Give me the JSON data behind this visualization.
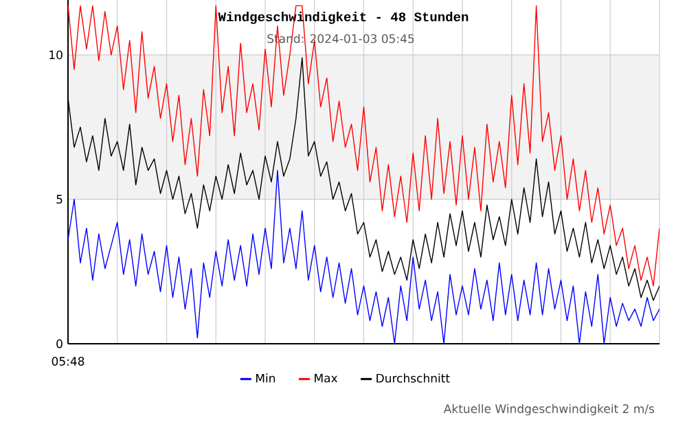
{
  "chart_data": {
    "type": "line",
    "title": "Windgeschwindigkeit - 48 Stunden",
    "subtitle": "Stand: 2024-01-03 05:45",
    "annotations": [
      "05:48",
      "Aktuelle Windgeschwindigkeit 2 m/s"
    ],
    "categories": [
      null,
      null,
      null,
      null,
      null,
      null,
      null,
      null,
      null,
      null,
      null,
      null,
      null,
      null,
      null,
      null,
      null,
      null,
      null,
      null,
      null,
      null,
      null,
      null,
      null,
      null,
      null,
      null,
      null,
      null,
      null,
      null,
      null,
      null,
      null,
      null,
      null,
      null,
      null,
      null,
      null,
      null,
      null,
      null,
      null,
      null,
      null,
      null,
      null,
      null,
      null,
      null,
      null,
      null,
      null,
      null,
      null,
      null,
      null,
      null,
      null,
      null,
      null,
      null,
      null,
      null,
      null,
      null,
      null,
      null,
      null,
      null,
      null,
      null,
      null,
      null,
      null,
      null,
      null,
      null,
      null,
      null,
      null,
      null,
      null,
      null,
      null,
      null,
      null,
      null,
      null,
      null,
      null,
      null,
      null,
      null,
      null
    ],
    "series": [
      {
        "name": "Min",
        "color": "#0000ff",
        "values": [
          3.6,
          5.0,
          2.8,
          4.0,
          2.2,
          3.8,
          2.6,
          3.4,
          4.2,
          2.4,
          3.6,
          2.0,
          3.8,
          2.4,
          3.2,
          1.8,
          3.4,
          1.6,
          3.0,
          1.2,
          2.6,
          0.2,
          2.8,
          1.6,
          3.2,
          2.0,
          3.6,
          2.2,
          3.4,
          2.0,
          3.8,
          2.4,
          4.0,
          2.6,
          6.0,
          2.8,
          4.0,
          2.6,
          4.6,
          2.2,
          3.4,
          1.8,
          3.0,
          1.6,
          2.8,
          1.4,
          2.6,
          1.0,
          2.0,
          0.8,
          1.8,
          0.6,
          1.6,
          0.0,
          2.0,
          0.8,
          3.0,
          1.2,
          2.2,
          0.8,
          1.8,
          0.0,
          2.4,
          1.0,
          2.0,
          1.0,
          2.6,
          1.2,
          2.2,
          0.8,
          2.8,
          1.0,
          2.4,
          0.8,
          2.2,
          1.0,
          2.8,
          1.0,
          2.6,
          1.2,
          2.2,
          0.8,
          2.0,
          0.0,
          1.8,
          0.6,
          2.4,
          0.0,
          1.6,
          0.6,
          1.4,
          0.8,
          1.2,
          0.6,
          1.6,
          0.8,
          1.2
        ]
      },
      {
        "name": "Max",
        "color": "#ff0000",
        "values": [
          11.7,
          9.5,
          11.7,
          10.2,
          11.7,
          9.8,
          11.5,
          10.0,
          11.0,
          8.8,
          10.5,
          8.0,
          10.8,
          8.5,
          9.6,
          7.8,
          9.0,
          7.0,
          8.6,
          6.2,
          7.8,
          5.8,
          8.8,
          7.2,
          11.7,
          8.0,
          9.6,
          7.2,
          10.4,
          8.0,
          9.0,
          7.4,
          10.2,
          8.2,
          11.0,
          8.6,
          10.0,
          11.7,
          11.7,
          9.0,
          10.5,
          8.2,
          9.2,
          7.0,
          8.4,
          6.8,
          7.6,
          6.0,
          8.2,
          5.6,
          6.8,
          4.6,
          6.2,
          4.4,
          5.8,
          4.2,
          6.6,
          4.6,
          7.2,
          5.0,
          7.8,
          5.2,
          7.0,
          4.8,
          7.2,
          5.0,
          6.8,
          4.6,
          7.6,
          5.6,
          7.0,
          5.4,
          8.6,
          6.2,
          9.0,
          6.6,
          11.7,
          7.0,
          8.0,
          6.0,
          7.2,
          5.0,
          6.4,
          4.6,
          6.0,
          4.2,
          5.4,
          3.8,
          4.8,
          3.4,
          4.0,
          2.6,
          3.4,
          2.2,
          3.0,
          2.0,
          4.0
        ]
      },
      {
        "name": "Durchschnitt",
        "color": "#000000",
        "values": [
          8.5,
          6.8,
          7.5,
          6.3,
          7.2,
          6.0,
          7.8,
          6.5,
          7.0,
          6.0,
          7.6,
          5.5,
          6.8,
          6.0,
          6.4,
          5.2,
          6.0,
          5.0,
          5.8,
          4.5,
          5.2,
          4.0,
          5.5,
          4.6,
          5.8,
          5.0,
          6.2,
          5.2,
          6.6,
          5.5,
          6.0,
          5.0,
          6.5,
          5.6,
          7.0,
          5.8,
          6.4,
          7.8,
          9.9,
          6.5,
          7.0,
          5.8,
          6.3,
          5.0,
          5.6,
          4.6,
          5.2,
          3.8,
          4.2,
          3.0,
          3.6,
          2.5,
          3.2,
          2.4,
          3.0,
          2.2,
          3.6,
          2.6,
          3.8,
          2.8,
          4.2,
          3.0,
          4.5,
          3.4,
          4.6,
          3.2,
          4.2,
          3.0,
          4.8,
          3.6,
          4.4,
          3.4,
          5.0,
          3.8,
          5.4,
          4.2,
          6.4,
          4.4,
          5.6,
          3.8,
          4.6,
          3.2,
          4.0,
          3.0,
          4.2,
          2.8,
          3.6,
          2.6,
          3.4,
          2.4,
          3.0,
          2.0,
          2.6,
          1.6,
          2.2,
          1.5,
          2.0
        ]
      }
    ],
    "ylim": [
      0,
      11.9
    ],
    "yticks": [
      {
        "value": 0,
        "label": "0"
      },
      {
        "value": 5,
        "label": "5"
      },
      {
        "value": 10,
        "label": "10"
      }
    ],
    "bands": [
      {
        "axis": "y",
        "from": 5,
        "to": 10,
        "color": "#f2f2f2"
      }
    ],
    "grid": true,
    "legend": "bottom",
    "marker": "none",
    "line_style": "solid"
  }
}
